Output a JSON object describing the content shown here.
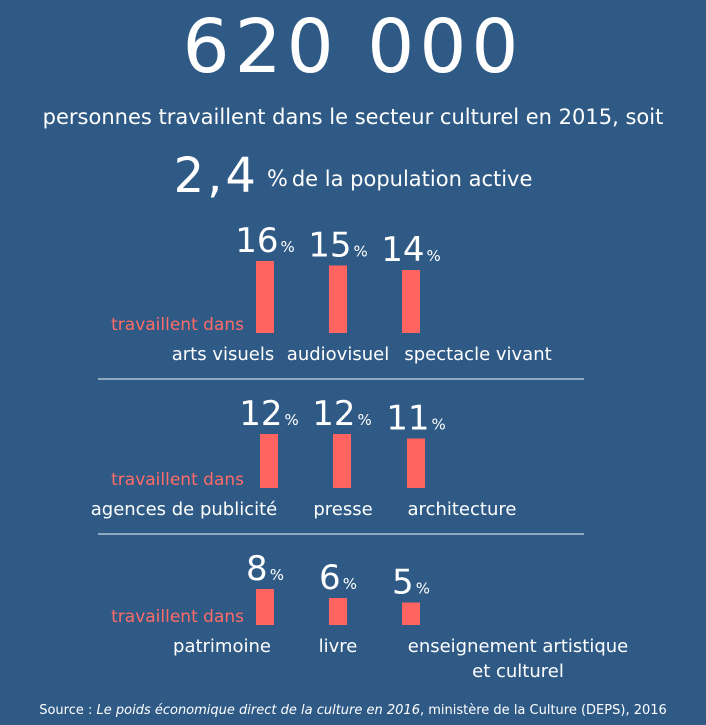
{
  "header": {
    "big_number": "620 000",
    "subtitle": "personnes travaillent dans le secteur culturel en 2015, soit",
    "share_value": "2,4",
    "share_unit": "%",
    "share_text": "de la population active"
  },
  "colors": {
    "background": "#2f5a86",
    "bar": "#ff6460",
    "accent_text": "#ff6b66",
    "text": "#ffffff",
    "divider": "#c9d6e4"
  },
  "chart_data": {
    "type": "bar",
    "unit": "%",
    "row_label": "travaillent dans",
    "groups": [
      {
        "categories": [
          "arts visuels",
          "audiovisuel",
          "spectacle vivant"
        ],
        "values": [
          16,
          15,
          14
        ]
      },
      {
        "categories": [
          "agences de publicité",
          "presse",
          "architecture"
        ],
        "values": [
          12,
          12,
          11
        ]
      },
      {
        "categories": [
          "patrimoine",
          "livre",
          "enseignement artistique et culturel"
        ],
        "category_lines": [
          [
            "patrimoine"
          ],
          [
            "livre"
          ],
          [
            "enseignement artistique",
            "et culturel"
          ]
        ],
        "values": [
          8,
          6,
          5
        ]
      }
    ]
  },
  "footer": {
    "source_prefix": "Source : ",
    "source_title": "Le poids économique direct de la culture en 2016",
    "source_suffix": ", ministère de la Culture (DEPS), 2016"
  }
}
